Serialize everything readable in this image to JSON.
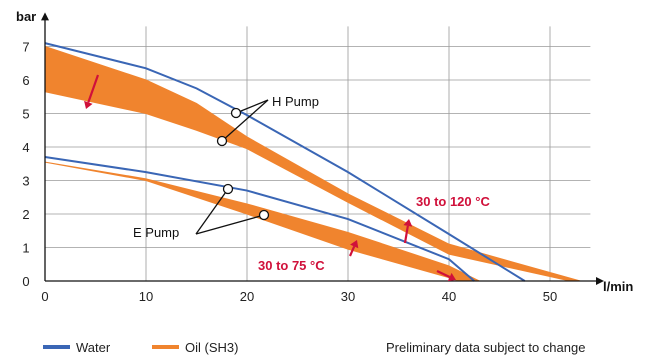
{
  "chart_data": {
    "type": "line",
    "xlabel": "l/min",
    "ylabel": "bar",
    "xlim": [
      0,
      54
    ],
    "ylim": [
      0,
      7.6
    ],
    "x_ticks": [
      0,
      10,
      20,
      30,
      40,
      50
    ],
    "y_ticks": [
      0,
      1,
      2,
      3,
      4,
      5,
      6,
      7
    ],
    "grid": true,
    "series": [
      {
        "name": "Water",
        "color": "#3a66b5",
        "curves": [
          {
            "label": "H Pump",
            "points": [
              [
                0,
                7.1
              ],
              [
                10,
                6.35
              ],
              [
                15,
                5.75
              ],
              [
                20,
                4.95
              ],
              [
                30,
                3.25
              ],
              [
                40,
                1.4
              ],
              [
                47.5,
                0
              ]
            ]
          },
          {
            "label": "E Pump",
            "points": [
              [
                0,
                3.7
              ],
              [
                10,
                3.25
              ],
              [
                20,
                2.7
              ],
              [
                30,
                1.85
              ],
              [
                40,
                0.65
              ],
              [
                42.5,
                0
              ]
            ]
          }
        ]
      },
      {
        "name": "Oil (SH3)",
        "color": "#f0842e",
        "bands": [
          {
            "label": "H Pump",
            "upper": [
              [
                0,
                7.0
              ],
              [
                10,
                6.0
              ],
              [
                15,
                5.3
              ],
              [
                20,
                4.3
              ],
              [
                30,
                2.6
              ],
              [
                40,
                1.1
              ],
              [
                53,
                0
              ]
            ],
            "lower": [
              [
                0,
                5.65
              ],
              [
                10,
                5.0
              ],
              [
                15,
                4.5
              ],
              [
                20,
                3.95
              ],
              [
                30,
                2.35
              ],
              [
                40,
                0.8
              ],
              [
                52,
                0
              ]
            ]
          },
          {
            "label": "E Pump",
            "upper": [
              [
                0,
                3.55
              ],
              [
                10,
                3.05
              ],
              [
                20,
                2.3
              ],
              [
                30,
                1.45
              ],
              [
                40,
                0.45
              ],
              [
                43,
                0
              ]
            ],
            "lower": [
              [
                0,
                3.55
              ],
              [
                10,
                3.0
              ],
              [
                20,
                2.0
              ],
              [
                30,
                0.95
              ],
              [
                40,
                0.1
              ],
              [
                41,
                0
              ]
            ]
          }
        ]
      }
    ],
    "annotations": {
      "h_pump": "H Pump",
      "e_pump": "E Pump",
      "range_high": "30 to 120 °C",
      "range_low": "30 to 75 °C"
    },
    "arrow_color": "#d0103a"
  },
  "legend": {
    "water": "Water",
    "oil": "Oil (SH3)",
    "water_color": "#3a66b5",
    "oil_color": "#f0842e"
  },
  "footnote": "Preliminary data subject to change"
}
